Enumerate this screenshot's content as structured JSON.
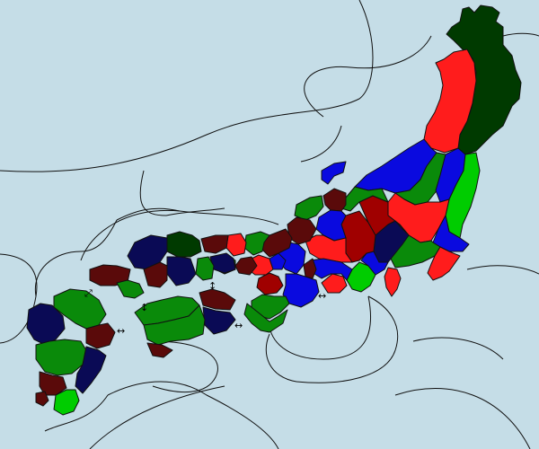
{
  "map": {
    "colors": {
      "sea": "#c5dde7",
      "clan_dark_green": "#003a00",
      "clan_red": "#ff1c1c",
      "clan_blue": "#0a0adf",
      "clan_green": "#0a8a0a",
      "clan_lime": "#00cc00",
      "clan_maroon": "#a00000",
      "clan_dark_maroon": "#5a0a0a",
      "clan_navy": "#0a0a55"
    },
    "sea_link_icons": [
      "↔",
      "↔",
      "↕",
      "↕",
      "↔",
      "↔",
      "⤢"
    ]
  }
}
